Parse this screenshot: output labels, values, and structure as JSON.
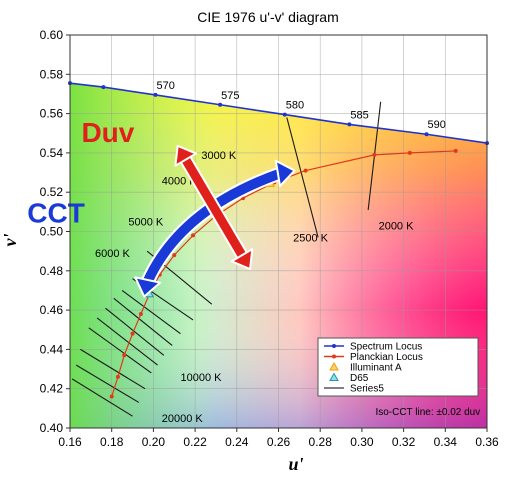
{
  "chart_data": {
    "type": "scatter",
    "title": "CIE 1976 u'-v' diagram",
    "xlabel": "u'",
    "ylabel": "v'",
    "xlim": [
      0.16,
      0.36
    ],
    "ylim": [
      0.4,
      0.6
    ],
    "xticks": [
      "0.16",
      "0.18",
      "0.20",
      "0.22",
      "0.24",
      "0.26",
      "0.28",
      "0.30",
      "0.32",
      "0.34",
      "0.36"
    ],
    "yticks": [
      "0.40",
      "0.42",
      "0.44",
      "0.46",
      "0.48",
      "0.50",
      "0.52",
      "0.54",
      "0.56",
      "0.58",
      "0.60"
    ],
    "grid": true,
    "legend_position": "bottom-right",
    "series": [
      {
        "name": "Spectrum Locus",
        "color": "#2233cc",
        "x": [
          0.16,
          0.176,
          0.201,
          0.232,
          0.263,
          0.294,
          0.331,
          0.36
        ],
        "y": [
          0.5755,
          0.5735,
          0.5695,
          0.5645,
          0.5595,
          0.5545,
          0.5495,
          0.545
        ]
      },
      {
        "name": "Planckian Locus",
        "color": "#e03a1a",
        "x": [
          0.18,
          0.183,
          0.186,
          0.19,
          0.194,
          0.198,
          0.203,
          0.21,
          0.219,
          0.23,
          0.243,
          0.258,
          0.273,
          0.306,
          0.323,
          0.345
        ],
        "y": [
          0.416,
          0.426,
          0.437,
          0.448,
          0.458,
          0.468,
          0.478,
          0.488,
          0.498,
          0.508,
          0.517,
          0.525,
          0.531,
          0.539,
          0.54,
          0.541
        ]
      },
      {
        "name": "Illuminant A",
        "color": "#f0a000",
        "x": [
          0.256
        ],
        "y": [
          0.5245
        ]
      },
      {
        "name": "D65",
        "color": "#1f9aa6",
        "x": [
          0.198
        ],
        "y": [
          0.4683
        ]
      },
      {
        "name": "Series5",
        "color": "#000000"
      }
    ],
    "wavelength_labels": [
      {
        "text": "570",
        "x": 0.201,
        "y": 0.5695
      },
      {
        "text": "575",
        "x": 0.232,
        "y": 0.5645
      },
      {
        "text": "580",
        "x": 0.263,
        "y": 0.5595
      },
      {
        "text": "585",
        "x": 0.294,
        "y": 0.5545
      },
      {
        "text": "590",
        "x": 0.331,
        "y": 0.5495
      }
    ],
    "cct_labels": [
      {
        "text": "3000 K",
        "x": 0.223,
        "y": 0.537
      },
      {
        "text": "4000 K",
        "x": 0.204,
        "y": 0.524
      },
      {
        "text": "5000 K",
        "x": 0.188,
        "y": 0.503
      },
      {
        "text": "6000 K",
        "x": 0.172,
        "y": 0.487
      },
      {
        "text": "2500 K",
        "x": 0.267,
        "y": 0.495
      },
      {
        "text": "2000 K",
        "x": 0.308,
        "y": 0.501
      },
      {
        "text": "10000 K",
        "x": 0.213,
        "y": 0.424
      },
      {
        "text": "20000 K",
        "x": 0.204,
        "y": 0.403
      }
    ],
    "iso_cct_lines": [
      {
        "x1": 0.309,
        "y1": 0.566,
        "x2": 0.303,
        "y2": 0.511
      },
      {
        "x1": 0.264,
        "y1": 0.558,
        "x2": 0.279,
        "y2": 0.497
      },
      {
        "x1": 0.197,
        "y1": 0.49,
        "x2": 0.228,
        "y2": 0.463
      },
      {
        "x1": 0.19,
        "y1": 0.476,
        "x2": 0.219,
        "y2": 0.455
      },
      {
        "x1": 0.185,
        "y1": 0.47,
        "x2": 0.213,
        "y2": 0.448
      },
      {
        "x1": 0.181,
        "y1": 0.466,
        "x2": 0.209,
        "y2": 0.442
      },
      {
        "x1": 0.177,
        "y1": 0.461,
        "x2": 0.205,
        "y2": 0.437
      },
      {
        "x1": 0.173,
        "y1": 0.456,
        "x2": 0.202,
        "y2": 0.432
      },
      {
        "x1": 0.169,
        "y1": 0.451,
        "x2": 0.199,
        "y2": 0.428
      },
      {
        "x1": 0.165,
        "y1": 0.44,
        "x2": 0.196,
        "y2": 0.42
      },
      {
        "x1": 0.163,
        "y1": 0.432,
        "x2": 0.193,
        "y2": 0.413
      },
      {
        "x1": 0.161,
        "y1": 0.425,
        "x2": 0.19,
        "y2": 0.406
      }
    ],
    "annotations": {
      "duv": {
        "text": "Duv",
        "color": "#e0201a"
      },
      "cct": {
        "text": "CCT",
        "color": "#1a3ad8"
      },
      "iso_note": "Iso-CCT line: ±0.02 duv"
    }
  }
}
